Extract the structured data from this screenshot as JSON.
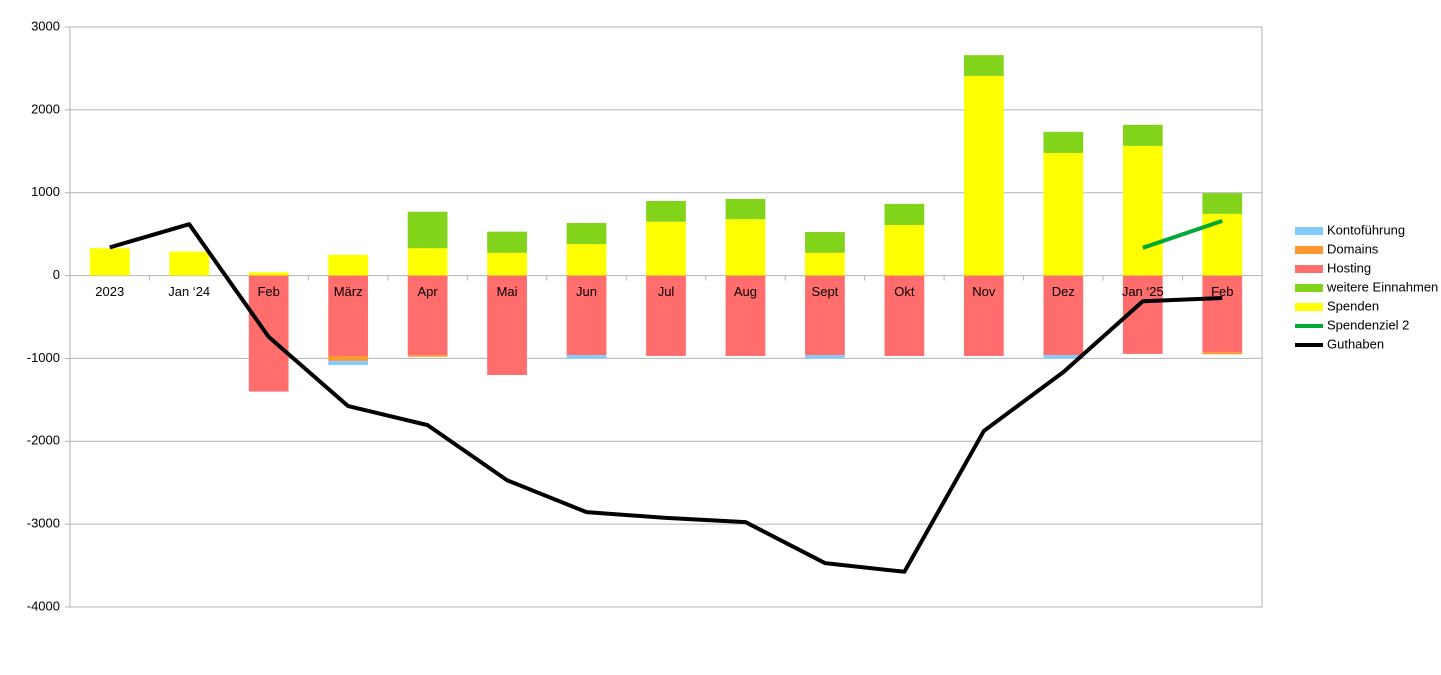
{
  "chart_data": {
    "type": "bar",
    "categories": [
      "2023",
      "Jan ‘24",
      "Feb",
      "März",
      "Apr",
      "Mai",
      "Jun",
      "Jul",
      "Aug",
      "Sept",
      "Okt",
      "Nov",
      "Dez",
      "Jan ‘25",
      "Feb"
    ],
    "stacked": true,
    "series": [
      {
        "name": "Kontoführung",
        "type": "bar",
        "color": "#83caff",
        "values": [
          0,
          0,
          0,
          -50,
          0,
          0,
          -40,
          0,
          0,
          -40,
          0,
          0,
          -40,
          0,
          0
        ]
      },
      {
        "name": "Domains",
        "type": "bar",
        "color": "#ff972f",
        "values": [
          0,
          0,
          0,
          -60,
          -20,
          0,
          0,
          0,
          0,
          0,
          0,
          0,
          0,
          0,
          -25
        ]
      },
      {
        "name": "Hosting",
        "type": "bar",
        "color": "#ff6d6d",
        "values": [
          0,
          0,
          -1400,
          -970,
          -960,
          -1200,
          -960,
          -970,
          -970,
          -960,
          -970,
          -970,
          -960,
          -945,
          -925
        ]
      },
      {
        "name": "weitere Einnahmen",
        "type": "bar",
        "color": "#81d41a",
        "values": [
          0,
          0,
          0,
          0,
          440,
          255,
          255,
          250,
          245,
          250,
          255,
          250,
          255,
          255,
          250
        ]
      },
      {
        "name": "Spenden",
        "type": "bar",
        "color": "#ffff00",
        "values": [
          330,
          290,
          40,
          250,
          330,
          275,
          380,
          650,
          680,
          275,
          610,
          2410,
          1480,
          1565,
          745
        ]
      },
      {
        "name": "Spendenziel 2",
        "type": "line",
        "color": "#00a933",
        "values": [
          null,
          null,
          null,
          null,
          null,
          null,
          null,
          null,
          null,
          null,
          null,
          null,
          null,
          335,
          660
        ]
      },
      {
        "name": "Guthaben",
        "type": "line",
        "color": "#000000",
        "values": [
          340,
          620,
          -740,
          -1575,
          -1805,
          -2470,
          -2855,
          -2925,
          -2975,
          -3470,
          -3575,
          -1875,
          -1165,
          -310,
          -270
        ]
      }
    ],
    "ylim": [
      -4000,
      3000
    ],
    "yticks": [
      -4000,
      -3000,
      -2000,
      -1000,
      0,
      1000,
      2000,
      3000
    ],
    "grid": true,
    "legend": "right"
  }
}
